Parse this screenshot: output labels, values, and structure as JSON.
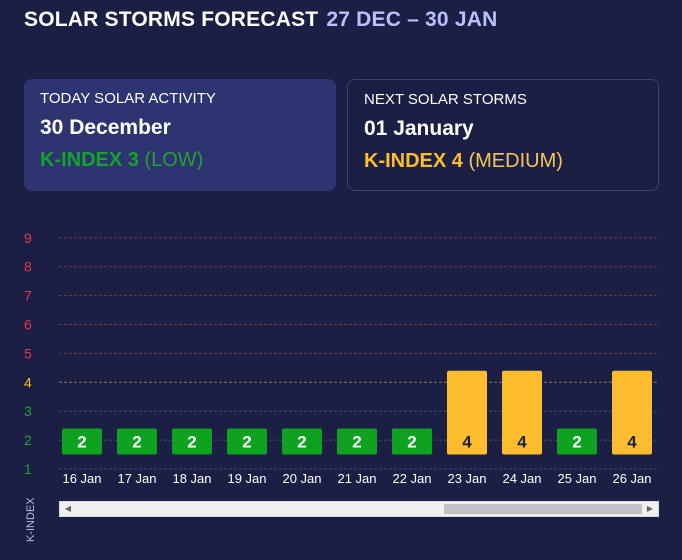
{
  "header": {
    "title": "SOLAR STORMS FORECAST",
    "range": "27 DEC – 30 JAN"
  },
  "today_card": {
    "label": "TODAY SOLAR ACTIVITY",
    "date": "30 December",
    "k_prefix": "K-INDEX 3",
    "k_level": "(LOW)"
  },
  "next_card": {
    "label": "NEXT SOLAR STORMS",
    "date": "01 January",
    "k_prefix": "K-INDEX 4",
    "k_level": "(MEDIUM)"
  },
  "colors": {
    "background": "#1b1f44",
    "low": "#0fa220",
    "medium": "#fdbd2e",
    "storm": "#e03a47",
    "axis_low": "#21a038"
  },
  "chart_data": {
    "type": "bar",
    "ylabel": "K-INDEX",
    "ylim": [
      1,
      9
    ],
    "y_ticks": [
      "1",
      "2",
      "3",
      "4",
      "5",
      "6",
      "7",
      "8",
      "9"
    ],
    "categories": [
      "16 Jan",
      "17 Jan",
      "18 Jan",
      "19 Jan",
      "20 Jan",
      "21 Jan",
      "22 Jan",
      "23 Jan",
      "24 Jan",
      "25 Jan",
      "26 Jan"
    ],
    "values": [
      2,
      2,
      2,
      2,
      2,
      2,
      2,
      4,
      4,
      2,
      4
    ],
    "data_labels": [
      "2",
      "2",
      "2",
      "2",
      "2",
      "2",
      "2",
      "4",
      "4",
      "2",
      "4"
    ]
  },
  "scroll": {
    "left_arrow": "◀",
    "right_arrow": "▶"
  }
}
